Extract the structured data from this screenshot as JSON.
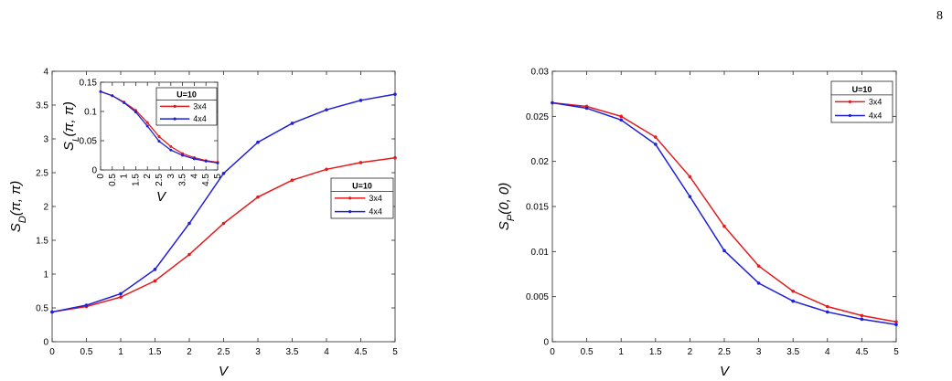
{
  "page_number": "8",
  "chart_data": [
    {
      "type": "line",
      "xlabel": "V",
      "ylabel_main": "S",
      "ylabel_sub": "D",
      "ylabel_args": "(π, π)",
      "xlim": [
        0,
        5
      ],
      "ylim": [
        0,
        4
      ],
      "xticks": [
        "0",
        "0.5",
        "1",
        "1.5",
        "2",
        "2.5",
        "3",
        "3.5",
        "4",
        "4.5",
        "5"
      ],
      "yticks": [
        "0",
        "0.5",
        "1",
        "1.5",
        "2",
        "2.5",
        "3",
        "3.5",
        "4"
      ],
      "x": [
        0,
        0.5,
        1,
        1.5,
        2,
        2.5,
        3,
        3.5,
        4,
        4.5,
        5
      ],
      "legend_title": "U=10",
      "series": [
        {
          "name": "3x4",
          "color": "#e41a1c",
          "values": [
            0.44,
            0.52,
            0.66,
            0.9,
            1.29,
            1.75,
            2.14,
            2.39,
            2.55,
            2.65,
            2.72
          ]
        },
        {
          "name": "4x4",
          "color": "#1f1fd6",
          "values": [
            0.44,
            0.54,
            0.71,
            1.07,
            1.75,
            2.49,
            2.95,
            3.23,
            3.43,
            3.57,
            3.66
          ]
        }
      ]
    },
    {
      "type": "line",
      "inset": true,
      "xlabel": "V",
      "ylabel_main": "S",
      "ylabel_sub": "L",
      "ylabel_args": "(π, π)",
      "xlim": [
        0,
        5
      ],
      "ylim": [
        0,
        0.15
      ],
      "xticks": [
        "0",
        "0.5",
        "1",
        "1.5",
        "2",
        "2.5",
        "3",
        "3.5",
        "4",
        "4.5",
        "5"
      ],
      "yticks": [
        "0",
        "0.05",
        "0.1",
        "0.15"
      ],
      "x": [
        0,
        0.5,
        1,
        1.5,
        2,
        2.5,
        3,
        3.5,
        4,
        4.5,
        5
      ],
      "legend_title": "U=10",
      "series": [
        {
          "name": "3x4",
          "color": "#e41a1c",
          "values": [
            0.134,
            0.127,
            0.116,
            0.102,
            0.081,
            0.057,
            0.04,
            0.028,
            0.021,
            0.016,
            0.013
          ]
        },
        {
          "name": "4x4",
          "color": "#1f1fd6",
          "values": [
            0.134,
            0.127,
            0.115,
            0.099,
            0.075,
            0.049,
            0.034,
            0.025,
            0.019,
            0.015,
            0.012
          ]
        }
      ]
    },
    {
      "type": "line",
      "xlabel": "V",
      "ylabel_main": "S",
      "ylabel_sub": "P",
      "ylabel_args": "(0, 0)",
      "xlim": [
        0,
        5
      ],
      "ylim": [
        0,
        0.03
      ],
      "xticks": [
        "0",
        "0.5",
        "1",
        "1.5",
        "2",
        "2.5",
        "3",
        "3.5",
        "4",
        "4.5",
        "5"
      ],
      "yticks": [
        "0",
        "0.005",
        "0.01",
        "0.015",
        "0.02",
        "0.025",
        "0.03"
      ],
      "x": [
        0,
        0.5,
        1,
        1.5,
        2,
        2.5,
        3,
        3.5,
        4,
        4.5,
        5
      ],
      "legend_title": "U=10",
      "series": [
        {
          "name": "3x4",
          "color": "#e41a1c",
          "values": [
            0.0265,
            0.0261,
            0.025,
            0.0227,
            0.0183,
            0.0128,
            0.0084,
            0.0056,
            0.0039,
            0.0029,
            0.0022
          ]
        },
        {
          "name": "4x4",
          "color": "#1f1fd6",
          "values": [
            0.0265,
            0.0259,
            0.0246,
            0.0219,
            0.0161,
            0.0101,
            0.0065,
            0.0045,
            0.0033,
            0.0025,
            0.0019
          ]
        }
      ]
    }
  ]
}
